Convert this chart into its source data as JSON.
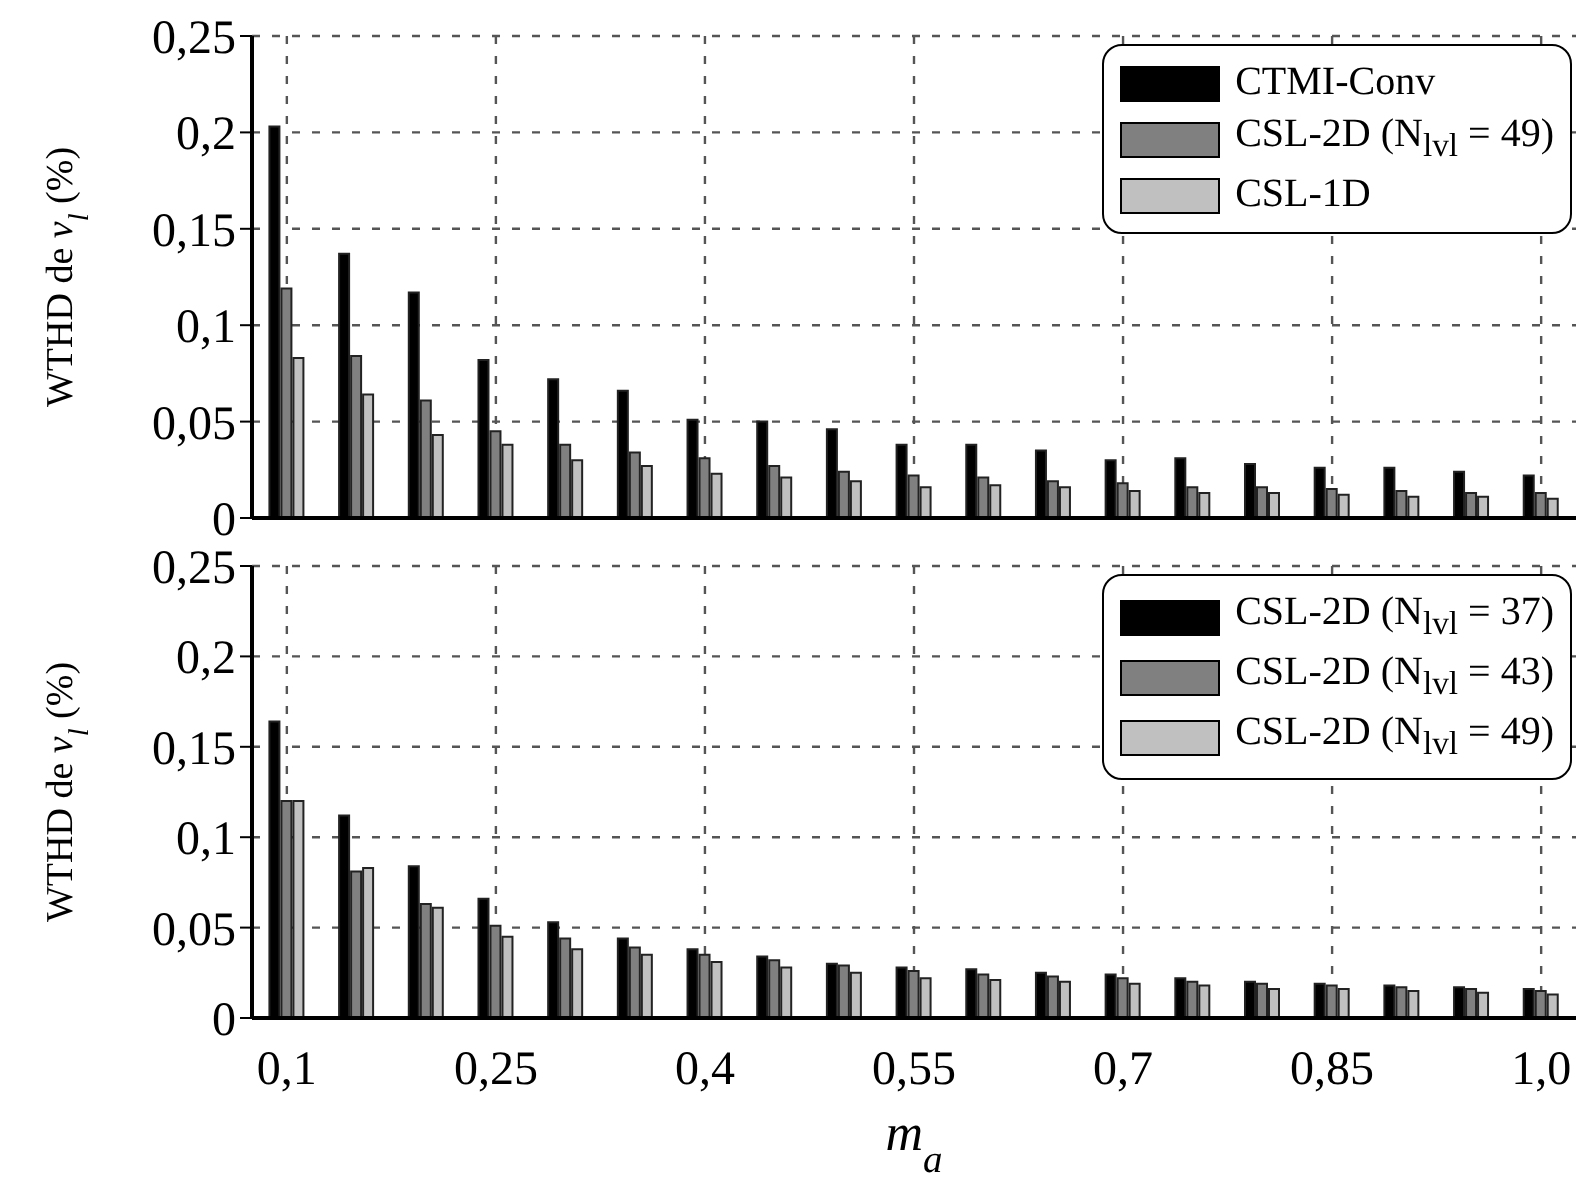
{
  "chart_data": [
    {
      "type": "bar",
      "ylabel": "WTHD de v$_{l}$ (%)",
      "categories": [
        "0,1",
        null,
        null,
        "0,25",
        null,
        null,
        "0,4",
        null,
        null,
        "0,55",
        null,
        null,
        "0,7",
        null,
        null,
        "0,85",
        null,
        null,
        "1,0"
      ],
      "series": [
        {
          "name": "CTMI-Conv",
          "color": "#000000",
          "values": [
            0.203,
            0.137,
            0.117,
            0.082,
            0.072,
            0.066,
            0.051,
            0.05,
            0.046,
            0.038,
            0.038,
            0.035,
            0.03,
            0.031,
            0.028,
            0.026,
            0.026,
            0.024,
            0.022
          ]
        },
        {
          "name": "CSL-2D (N$_{lvl}$ = 49)",
          "color": "#808080",
          "values": [
            0.119,
            0.084,
            0.061,
            0.045,
            0.038,
            0.034,
            0.031,
            0.027,
            0.024,
            0.022,
            0.021,
            0.019,
            0.018,
            0.016,
            0.016,
            0.015,
            0.014,
            0.013,
            0.013
          ]
        },
        {
          "name": "CSL-1D",
          "color": "#c0c0c0",
          "values": [
            0.083,
            0.064,
            0.043,
            0.038,
            0.03,
            0.027,
            0.023,
            0.021,
            0.019,
            0.016,
            0.017,
            0.016,
            0.014,
            0.013,
            0.013,
            0.012,
            0.011,
            0.011,
            0.01
          ]
        }
      ],
      "ylim": [
        0,
        0.25
      ],
      "yticks": [
        0,
        {
          "value": 0.05,
          "label": "0,05"
        },
        {
          "value": 0.1,
          "label": "0,1"
        },
        {
          "value": 0.15,
          "label": "0,15"
        },
        {
          "value": 0.2,
          "label": "0,2"
        },
        {
          "value": 0.25,
          "label": "0,25"
        }
      ],
      "grid": true,
      "legend": "top right",
      "tick_labels": "y"
    },
    {
      "type": "bar",
      "ylabel": "WTHD de v$_{l}$ (%)",
      "xlabel": "m$_{a}$",
      "categories": [
        "0,1",
        null,
        null,
        "0,25",
        null,
        null,
        "0,4",
        null,
        null,
        "0,55",
        null,
        null,
        "0,7",
        null,
        null,
        "0,85",
        null,
        null,
        "1,0"
      ],
      "series": [
        {
          "name": "CSL-2D (N$_{lvl}$ = 37)",
          "color": "#000000",
          "values": [
            0.164,
            0.112,
            0.084,
            0.066,
            0.053,
            0.044,
            0.038,
            0.034,
            0.03,
            0.028,
            0.027,
            0.025,
            0.024,
            0.022,
            0.02,
            0.019,
            0.018,
            0.017,
            0.016
          ]
        },
        {
          "name": "CSL-2D (N$_{lvl}$ = 43)",
          "color": "#808080",
          "values": [
            0.12,
            0.081,
            0.063,
            0.051,
            0.044,
            0.039,
            0.035,
            0.032,
            0.029,
            0.026,
            0.024,
            0.023,
            0.022,
            0.02,
            0.019,
            0.018,
            0.017,
            0.016,
            0.015
          ]
        },
        {
          "name": "CSL-2D (N$_{lvl}$ = 49)",
          "color": "#c0c0c0",
          "values": [
            0.12,
            0.083,
            0.061,
            0.045,
            0.038,
            0.035,
            0.031,
            0.028,
            0.025,
            0.022,
            0.021,
            0.02,
            0.019,
            0.018,
            0.016,
            0.016,
            0.015,
            0.014,
            0.013
          ]
        }
      ],
      "ylim": [
        0,
        0.25
      ],
      "yticks": [
        0,
        {
          "value": 0.05,
          "label": "0,05"
        },
        {
          "value": 0.1,
          "label": "0,1"
        },
        {
          "value": 0.15,
          "label": "0,15"
        },
        {
          "value": 0.2,
          "label": "0,2"
        },
        {
          "value": 0.25,
          "label": "0,25"
        }
      ],
      "grid": true,
      "legend": "top right"
    }
  ]
}
